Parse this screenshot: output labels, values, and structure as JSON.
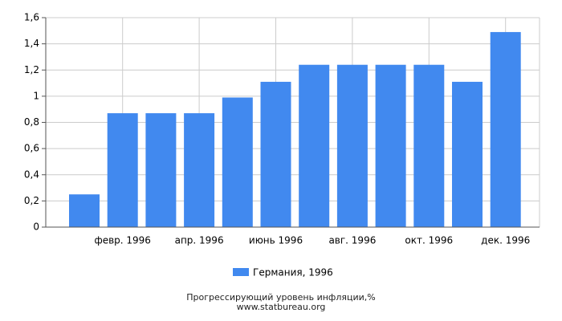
{
  "chart_data": {
    "type": "bar",
    "title": "Прогрессирующий уровень инфляции,%",
    "source": "www.statbureau.org",
    "categories": [
      null,
      "февр. 1996",
      null,
      "апр. 1996",
      null,
      "июнь 1996",
      null,
      "авг. 1996",
      null,
      "окт. 1996",
      null,
      "дек. 1996"
    ],
    "series": [
      {
        "name": "Германия, 1996",
        "color": "#4189ef",
        "values": [
          0.25,
          0.87,
          0.87,
          0.87,
          0.99,
          1.11,
          1.24,
          1.24,
          1.24,
          1.24,
          1.11,
          1.49
        ]
      }
    ],
    "ylim": [
      0,
      1.6
    ],
    "yticks": [
      0,
      {
        "value": 0.2,
        "label": "0,2"
      },
      {
        "value": 0.4,
        "label": "0,4"
      },
      {
        "value": 0.6,
        "label": "0,6"
      },
      {
        "value": 0.8,
        "label": "0,8"
      },
      1,
      {
        "value": 1.2,
        "label": "1,2"
      },
      {
        "value": 1.4,
        "label": "1,4"
      },
      {
        "value": 1.6,
        "label": "1,6"
      }
    ],
    "grid": true
  }
}
